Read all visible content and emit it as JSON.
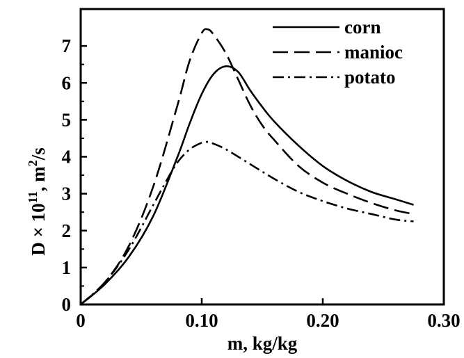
{
  "chart_data": {
    "type": "line",
    "xlabel": "m, kg/kg",
    "ylabel": {
      "prefix": "D × 10",
      "exponent": "11",
      "unit_base": ", m",
      "unit_exponent": "2",
      "unit_suffix": "/s"
    },
    "xlim": [
      0,
      0.3
    ],
    "ylim": [
      0,
      8
    ],
    "x_ticks": [
      0,
      0.1,
      0.2,
      0.3
    ],
    "x_tick_labels": [
      "0",
      "0.10",
      "0.20",
      "0.30"
    ],
    "y_ticks": [
      0,
      1,
      2,
      3,
      4,
      5,
      6,
      7
    ],
    "y_tick_labels": [
      "0",
      "1",
      "2",
      "3",
      "4",
      "5",
      "6",
      "7"
    ],
    "grid": false,
    "legend_position": "top-right",
    "series": [
      {
        "name": "corn",
        "style": "solid",
        "x": [
          0.0,
          0.02,
          0.04,
          0.06,
          0.08,
          0.09,
          0.1,
          0.11,
          0.12,
          0.13,
          0.14,
          0.15,
          0.16,
          0.18,
          0.2,
          0.22,
          0.24,
          0.26,
          0.275
        ],
        "y": [
          0.0,
          0.55,
          1.3,
          2.4,
          4.0,
          4.9,
          5.7,
          6.25,
          6.45,
          6.3,
          5.8,
          5.35,
          4.95,
          4.3,
          3.75,
          3.35,
          3.05,
          2.85,
          2.7
        ]
      },
      {
        "name": "manioc",
        "style": "dashed",
        "x": [
          0.0,
          0.02,
          0.04,
          0.06,
          0.08,
          0.09,
          0.1,
          0.105,
          0.11,
          0.12,
          0.13,
          0.14,
          0.15,
          0.16,
          0.18,
          0.2,
          0.22,
          0.24,
          0.26,
          0.275
        ],
        "y": [
          0.0,
          0.6,
          1.6,
          3.2,
          5.4,
          6.6,
          7.35,
          7.45,
          7.3,
          6.8,
          6.1,
          5.4,
          4.85,
          4.45,
          3.75,
          3.3,
          3.0,
          2.75,
          2.55,
          2.45
        ]
      },
      {
        "name": "potato",
        "style": "dash-dot",
        "x": [
          0.0,
          0.02,
          0.04,
          0.06,
          0.07,
          0.08,
          0.09,
          0.1,
          0.105,
          0.11,
          0.12,
          0.14,
          0.16,
          0.18,
          0.2,
          0.22,
          0.24,
          0.26,
          0.275
        ],
        "y": [
          0.0,
          0.6,
          1.5,
          2.7,
          3.3,
          3.85,
          4.2,
          4.38,
          4.4,
          4.35,
          4.2,
          3.8,
          3.4,
          3.05,
          2.8,
          2.6,
          2.45,
          2.3,
          2.25
        ]
      }
    ]
  }
}
